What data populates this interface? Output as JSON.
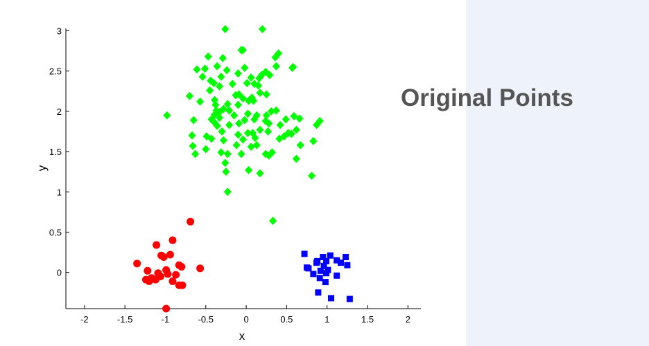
{
  "chart_data": {
    "type": "scatter",
    "title": "Original Points",
    "xlabel": "x",
    "ylabel": "y",
    "xlim": [
      -2.23,
      2.16
    ],
    "ylim": [
      -0.45,
      3.03
    ],
    "xticks": [
      -2,
      -1.5,
      -1,
      -0.5,
      0,
      0.5,
      1,
      1.5,
      2
    ],
    "yticks": [
      0,
      0.5,
      1,
      1.5,
      2,
      2.5,
      3
    ],
    "series": [
      {
        "color": "#ff0000",
        "marker": "circle",
        "x": [
          -0.69,
          -0.91,
          -1.11,
          -1.05,
          -0.94,
          -1.35,
          -0.83,
          -0.8,
          -0.57,
          -1.22,
          -0.99,
          -1.09,
          -1.17,
          -1.06,
          -0.87,
          -1.24,
          -1.12,
          -1.2,
          -0.91,
          -0.83,
          -0.79,
          -0.99,
          -1.02,
          -0.97
        ],
        "values": [
          0.63,
          0.4,
          0.34,
          0.21,
          0.22,
          0.11,
          0.09,
          0.07,
          0.05,
          0.02,
          0.03,
          -0.01,
          -0.07,
          -0.05,
          -0.03,
          -0.09,
          -0.09,
          -0.11,
          -0.11,
          -0.16,
          -0.16,
          -0.45,
          0.19,
          -0.02
        ]
      },
      {
        "color": "#0000ff",
        "marker": "square",
        "x": [
          0.72,
          1.04,
          0.95,
          1.23,
          1.12,
          0.88,
          0.99,
          1.17,
          1.25,
          0.75,
          0.87,
          0.96,
          1.01,
          0.92,
          0.99,
          0.83,
          1.12,
          0.91,
          0.98,
          0.89,
          1.05,
          1.28,
          0.77
        ],
        "values": [
          0.23,
          0.21,
          0.19,
          0.19,
          0.15,
          0.14,
          0.14,
          0.12,
          0.09,
          0.06,
          0.12,
          0.08,
          0.03,
          0.02,
          -0.01,
          -0.02,
          -0.04,
          -0.07,
          -0.12,
          -0.25,
          -0.32,
          -0.33,
          0.05
        ]
      },
      {
        "color": "#00ff00",
        "marker": "diamond",
        "x": [
          -0.26,
          0.2,
          0.4,
          0.36,
          -0.06,
          -0.04,
          -0.29,
          -0.47,
          -0.51,
          -0.61,
          -0.36,
          -0.24,
          -0.02,
          -0.1,
          0.24,
          0.19,
          0.29,
          0.16,
          0.06,
          0.37,
          0.58,
          0.57,
          -0.54,
          -0.44,
          -0.31,
          -0.4,
          -0.17,
          0.1,
          0.15,
          0.01,
          -0.33,
          -0.45,
          -0.7,
          -0.57,
          -0.39,
          -0.09,
          -0.13,
          -0.04,
          0.07,
          0.09,
          0.17,
          0.25,
          -0.38,
          -0.28,
          -0.37,
          -0.23,
          -0.21,
          -0.33,
          -0.1,
          0.03,
          0.02,
          -0.39,
          -0.65,
          -0.98,
          -0.43,
          -0.33,
          -0.15,
          -0.02,
          0.13,
          0.25,
          0.31,
          0.37,
          0.1,
          0.24,
          0.28,
          0.49,
          0.42,
          0.59,
          0.66,
          0.62,
          0.91,
          0.87,
          -0.36,
          -0.3,
          -0.21,
          -0.1,
          -0.04,
          0.02,
          0.17,
          0.08,
          0.27,
          0.41,
          0.47,
          0.52,
          0.56,
          0.11,
          -0.67,
          -0.49,
          -0.66,
          -0.12,
          0.06,
          0.13,
          0.67,
          0.83,
          -0.5,
          -0.31,
          -0.63,
          0.32,
          0.28,
          -0.23,
          -0.06,
          -0.26,
          0.62,
          0.03,
          0.24,
          -0.25,
          0.17,
          0.81,
          -0.23,
          0.33,
          -0.39,
          -0.28,
          -0.09,
          -0.43
        ],
        "values": [
          3.02,
          3.02,
          2.72,
          2.67,
          2.76,
          2.76,
          2.66,
          2.68,
          2.53,
          2.52,
          2.56,
          2.51,
          2.54,
          2.47,
          2.49,
          2.45,
          2.45,
          2.41,
          2.42,
          2.56,
          2.55,
          2.54,
          2.43,
          2.38,
          2.43,
          2.35,
          2.34,
          2.34,
          2.32,
          2.35,
          2.31,
          2.26,
          2.19,
          2.12,
          2.14,
          2.21,
          2.2,
          2.16,
          2.17,
          2.13,
          2.23,
          2.21,
          2.08,
          2.03,
          2.01,
          2.09,
          2.01,
          1.99,
          2.08,
          2.13,
          1.97,
          1.96,
          1.89,
          1.95,
          1.9,
          1.92,
          1.95,
          1.89,
          1.95,
          1.95,
          2.0,
          2.01,
          1.9,
          1.88,
          1.85,
          1.9,
          1.83,
          1.94,
          1.91,
          1.77,
          1.88,
          1.83,
          1.82,
          1.75,
          1.83,
          1.71,
          1.65,
          1.73,
          1.77,
          1.73,
          1.75,
          1.66,
          1.69,
          1.73,
          1.72,
          1.67,
          1.7,
          1.69,
          1.57,
          1.58,
          1.56,
          1.58,
          1.58,
          1.63,
          1.53,
          1.49,
          1.47,
          1.49,
          1.45,
          1.47,
          1.47,
          1.36,
          1.41,
          1.27,
          1.47,
          1.25,
          1.23,
          1.2,
          1.0,
          0.64,
          1.86,
          1.64,
          1.85,
          1.66
        ]
      }
    ]
  }
}
